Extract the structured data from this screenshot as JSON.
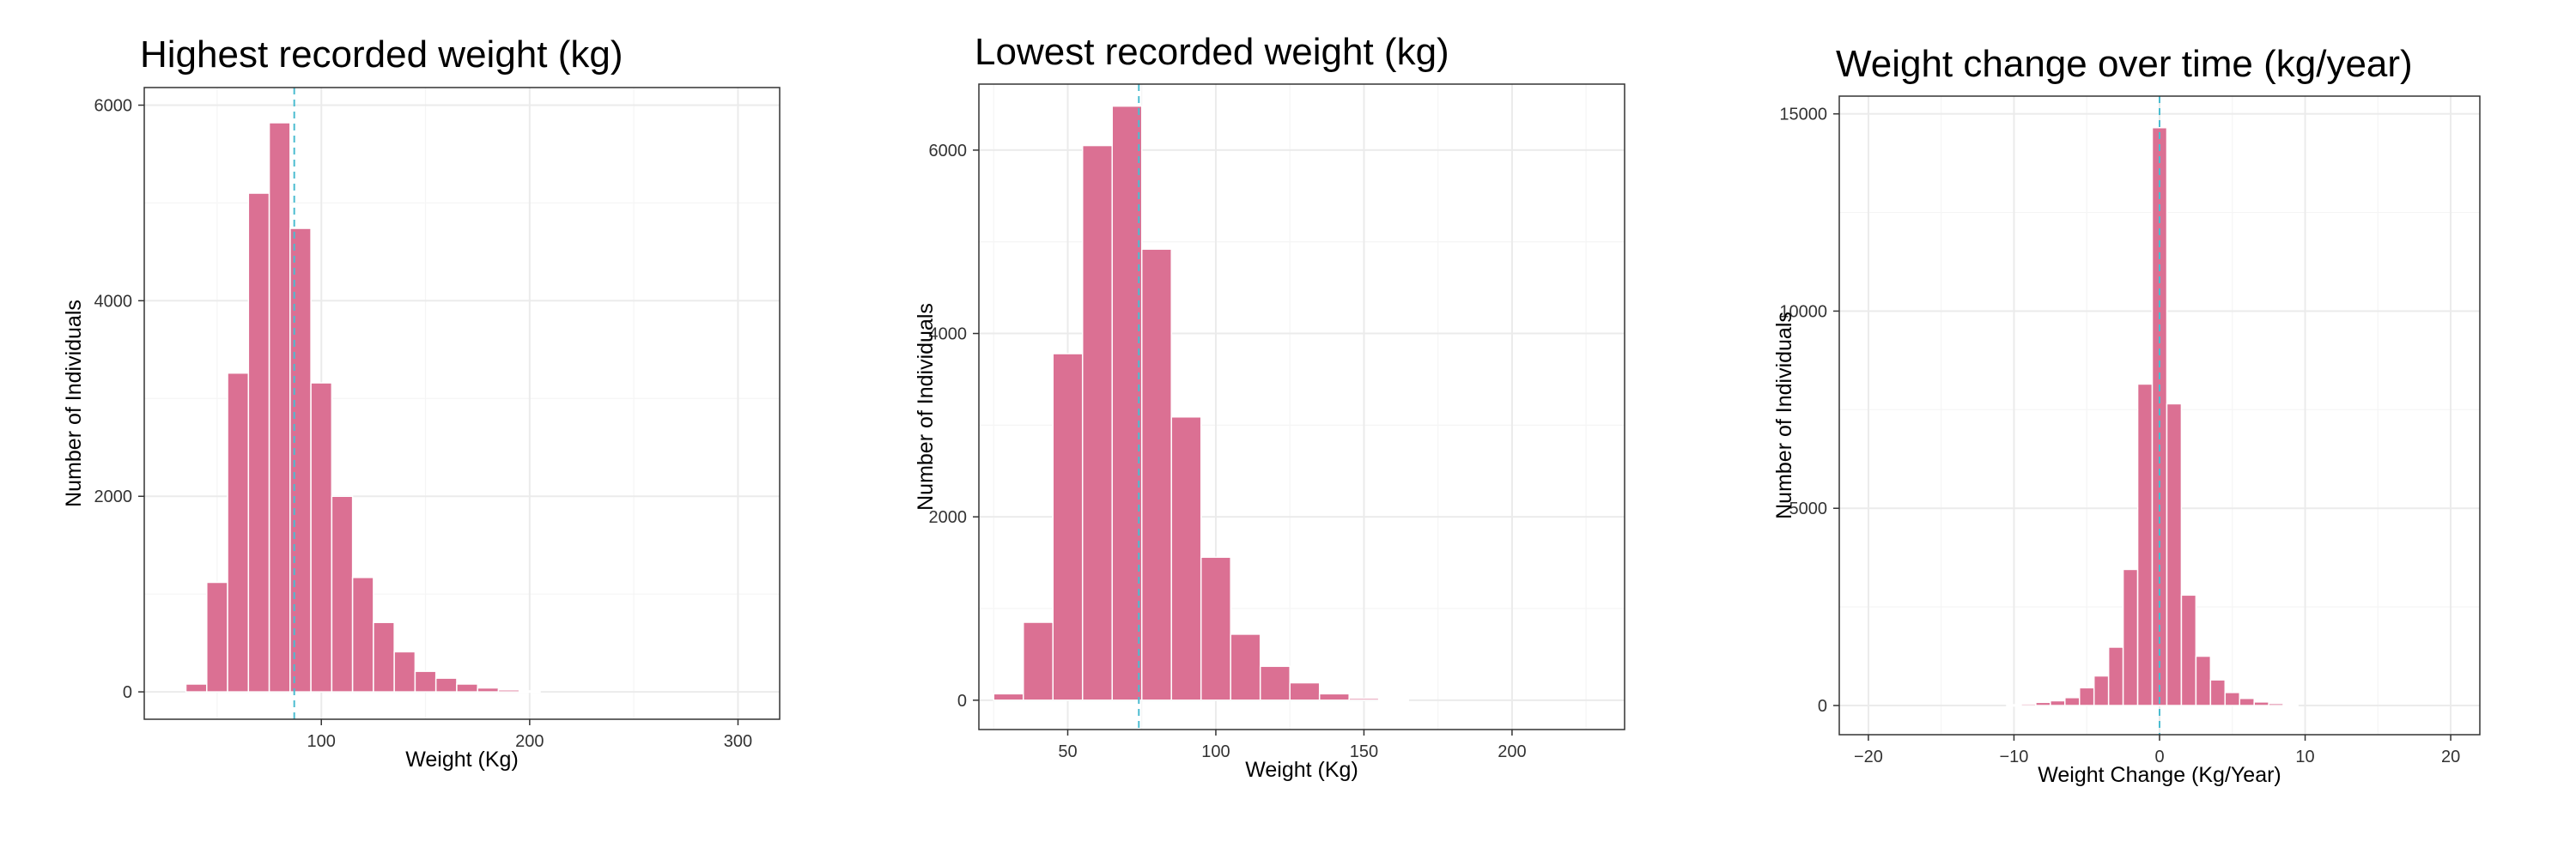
{
  "colors": {
    "bar_fill": "#DB7093",
    "bar_stroke": "#FFFFFF",
    "mean_line": "#4BBCD0",
    "grid_major": "#EBEBEB",
    "grid_minor": "#F5F5F5",
    "panel_border": "#333333"
  },
  "chart_data": [
    {
      "type": "bar",
      "title": "Highest recorded weight (kg)",
      "xlabel": "Weight (Kg)",
      "ylabel": "Number of Individuals",
      "xlim": [
        15,
        320
      ],
      "ylim": [
        -280,
        6180
      ],
      "x_ticks": [
        100,
        200,
        300
      ],
      "x_tick_labels": [
        "100",
        "200",
        "300"
      ],
      "y_ticks": [
        0,
        2000,
        4000,
        6000
      ],
      "y_tick_labels": [
        "0",
        "2000",
        "4000",
        "6000"
      ],
      "bin_width": 10,
      "x": [
        40,
        50,
        60,
        70,
        80,
        90,
        100,
        110,
        120,
        130,
        140,
        150,
        160,
        170,
        180,
        190,
        200
      ],
      "values": [
        80,
        1120,
        3260,
        5100,
        5820,
        4740,
        3160,
        2000,
        1170,
        710,
        410,
        210,
        140,
        80,
        40,
        20,
        10
      ],
      "mean": 87,
      "grid": true
    },
    {
      "type": "bar",
      "title": "Lowest recorded weight (kg)",
      "xlabel": "Weight (Kg)",
      "ylabel": "Number of Individuals",
      "xlim": [
        20,
        238
      ],
      "ylim": [
        -320,
        6720
      ],
      "x_ticks": [
        50,
        100,
        150,
        200
      ],
      "x_tick_labels": [
        "50",
        "100",
        "150",
        "200"
      ],
      "y_ticks": [
        0,
        2000,
        4000,
        6000
      ],
      "y_tick_labels": [
        "0",
        "2000",
        "4000",
        "6000"
      ],
      "bin_width": 10,
      "x": [
        30,
        40,
        50,
        60,
        70,
        80,
        90,
        100,
        110,
        120,
        130,
        140,
        150,
        160
      ],
      "values": [
        70,
        850,
        3780,
        6050,
        6480,
        4920,
        3090,
        1560,
        720,
        370,
        190,
        70,
        20,
        10
      ],
      "mean": 74,
      "grid": true
    },
    {
      "type": "bar",
      "title": "Weight change over time (kg/year)",
      "xlabel": "Weight Change (Kg/Year)",
      "ylabel": "Number of Individuals",
      "xlim": [
        -22,
        22
      ],
      "ylim": [
        -740,
        15450
      ],
      "x_ticks": [
        -20,
        -10,
        0,
        10,
        20
      ],
      "x_tick_labels": [
        "−20",
        "−10",
        "0",
        "10",
        "20"
      ],
      "y_ticks": [
        0,
        5000,
        10000,
        15000
      ],
      "y_tick_labels": [
        "0",
        "5000",
        "10000",
        "15000"
      ],
      "bin_width": 1,
      "x": [
        -10,
        -9,
        -8,
        -7,
        -6,
        -5,
        -4,
        -3,
        -2,
        -1,
        0,
        1,
        2,
        3,
        4,
        5,
        6,
        7,
        8,
        9
      ],
      "values": [
        20,
        40,
        80,
        120,
        200,
        450,
        750,
        1480,
        3450,
        8150,
        14650,
        7650,
        2800,
        1250,
        650,
        330,
        180,
        90,
        50,
        20
      ],
      "mean": 0,
      "grid": true
    }
  ]
}
